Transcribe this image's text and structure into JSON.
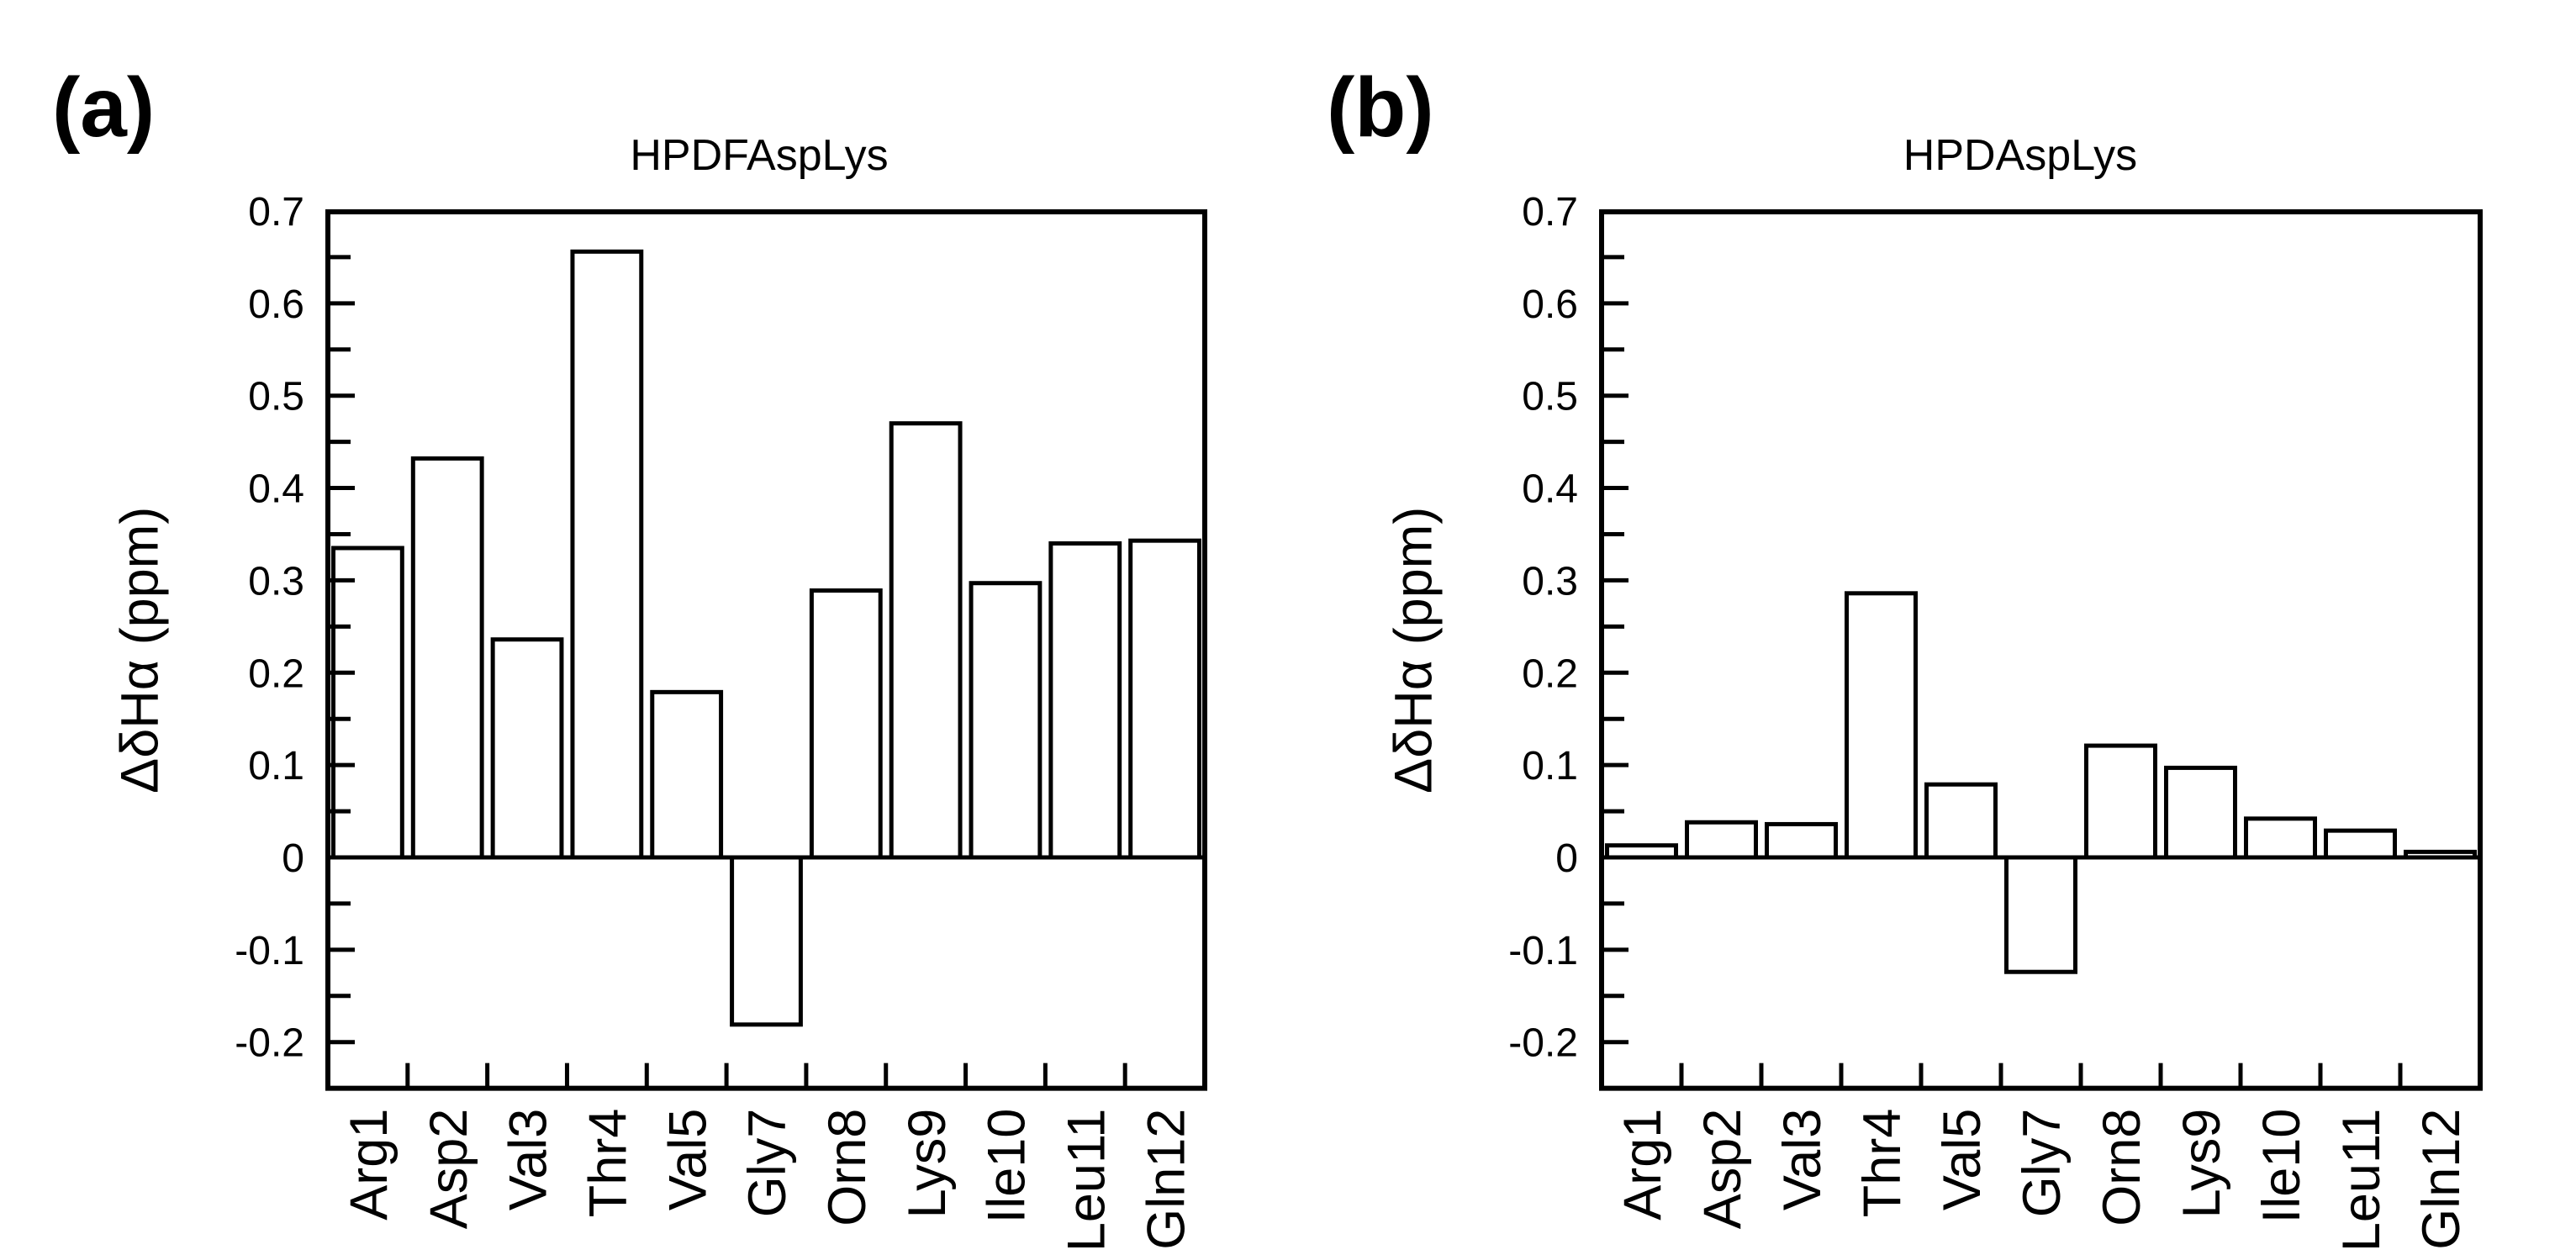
{
  "figure": {
    "background": "#ffffff",
    "foreground": "#000000",
    "panel_a_label": "(a)",
    "panel_b_label": "(b)"
  },
  "chart_data": [
    {
      "type": "bar",
      "panel_label": "(a)",
      "title": "HPDFAspLys",
      "xlabel": "",
      "ylabel": "ΔδHα (ppm)",
      "categories": [
        "Arg1",
        "Asp2",
        "Val3",
        "Thr4",
        "Val5",
        "Gly7",
        "Orn8",
        "Lys9",
        "Ile10",
        "Leu11",
        "Gln12"
      ],
      "values": [
        0.335,
        0.432,
        0.236,
        0.656,
        0.179,
        -0.181,
        0.289,
        0.47,
        0.297,
        0.34,
        0.343
      ],
      "ylim": [
        -0.25,
        0.7
      ],
      "y_tick_labels": [
        "0.7",
        "0.6",
        "0.5",
        "0.4",
        "0.3",
        "0.2",
        "0.1",
        "0",
        "-0.1",
        "-0.2"
      ],
      "y_major_step": 0.1,
      "y_minor_step": 0.05,
      "grid": false,
      "legend": "none",
      "bar_fill": "#ffffff",
      "bar_stroke": "#000000",
      "x_tick_style": "between-categories",
      "x_label_rotation": -90
    },
    {
      "type": "bar",
      "panel_label": "(b)",
      "title": "HPDAspLys",
      "xlabel": "",
      "ylabel": "ΔδHα (ppm)",
      "categories": [
        "Arg1",
        "Asp2",
        "Val3",
        "Thr4",
        "Val5",
        "Gly7",
        "Orn8",
        "Lys9",
        "Ile10",
        "Leu11",
        "Gln12"
      ],
      "values": [
        0.013,
        0.038,
        0.036,
        0.286,
        0.079,
        -0.124,
        0.121,
        0.097,
        0.042,
        0.029,
        0.006
      ],
      "ylim": [
        -0.25,
        0.7
      ],
      "y_tick_labels": [
        "0.7",
        "0.6",
        "0.5",
        "0.4",
        "0.3",
        "0.2",
        "0.1",
        "0",
        "-0.1",
        "-0.2"
      ],
      "y_major_step": 0.1,
      "y_minor_step": 0.05,
      "grid": false,
      "legend": "none",
      "bar_fill": "#ffffff",
      "bar_stroke": "#000000",
      "x_tick_style": "between-categories",
      "x_label_rotation": -90
    }
  ]
}
